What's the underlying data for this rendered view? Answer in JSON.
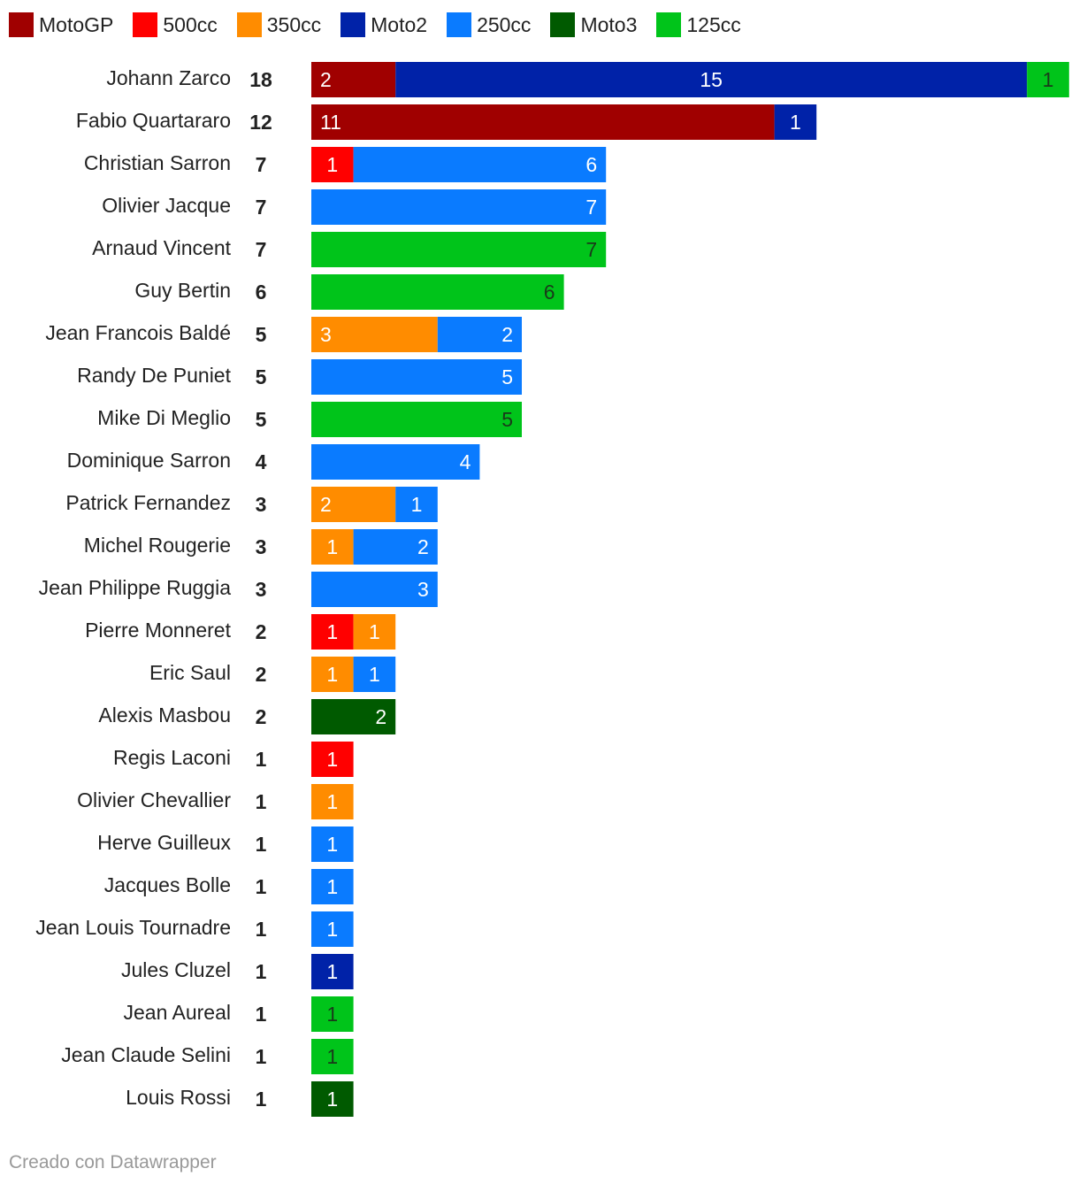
{
  "legend": [
    {
      "name": "MotoGP",
      "color": "#a00000"
    },
    {
      "name": "500cc",
      "color": "#ff0000"
    },
    {
      "name": "350cc",
      "color": "#ff8c00"
    },
    {
      "name": "Moto2",
      "color": "#0022a8"
    },
    {
      "name": "250cc",
      "color": "#0a7bff"
    },
    {
      "name": "Moto3",
      "color": "#005a00"
    },
    {
      "name": "125cc",
      "color": "#00c41a"
    }
  ],
  "footer": "Creado con Datawrapper",
  "chart_data": {
    "type": "bar",
    "orientation": "horizontal",
    "stacked": true,
    "legend_position": "top-left",
    "categories": [
      "Johann Zarco",
      "Fabio Quartararo",
      "Christian Sarron",
      "Olivier Jacque",
      "Arnaud Vincent",
      "Guy Bertin",
      "Jean Francois Baldé",
      "Randy De Puniet",
      "Mike Di Meglio",
      "Dominique Sarron",
      "Patrick Fernandez",
      "Michel Rougerie",
      "Jean Philippe Ruggia",
      "Pierre Monneret",
      "Eric Saul",
      "Alexis Masbou",
      "Regis Laconi",
      "Olivier Chevallier",
      "Herve Guilleux",
      "Jacques Bolle",
      "Jean Louis Tournadre",
      "Jules Cluzel",
      "Jean Aureal",
      "Jean Claude Selini",
      "Louis Rossi"
    ],
    "totals": [
      18,
      12,
      7,
      7,
      7,
      6,
      5,
      5,
      5,
      4,
      3,
      3,
      3,
      2,
      2,
      2,
      1,
      1,
      1,
      1,
      1,
      1,
      1,
      1,
      1
    ],
    "series": [
      {
        "name": "MotoGP",
        "values": [
          2,
          11,
          0,
          0,
          0,
          0,
          0,
          0,
          0,
          0,
          0,
          0,
          0,
          0,
          0,
          0,
          0,
          0,
          0,
          0,
          0,
          0,
          0,
          0,
          0
        ]
      },
      {
        "name": "500cc",
        "values": [
          0,
          0,
          1,
          0,
          0,
          0,
          0,
          0,
          0,
          0,
          0,
          0,
          0,
          1,
          0,
          0,
          1,
          0,
          0,
          0,
          0,
          0,
          0,
          0,
          0
        ]
      },
      {
        "name": "350cc",
        "values": [
          0,
          0,
          0,
          0,
          0,
          0,
          3,
          0,
          0,
          0,
          2,
          1,
          0,
          1,
          1,
          0,
          0,
          1,
          0,
          0,
          0,
          0,
          0,
          0,
          0
        ]
      },
      {
        "name": "Moto2",
        "values": [
          15,
          1,
          0,
          0,
          0,
          0,
          0,
          0,
          0,
          0,
          0,
          0,
          0,
          0,
          0,
          0,
          0,
          0,
          0,
          0,
          0,
          1,
          0,
          0,
          0
        ]
      },
      {
        "name": "250cc",
        "values": [
          0,
          0,
          6,
          7,
          0,
          0,
          2,
          5,
          0,
          4,
          1,
          2,
          3,
          0,
          1,
          0,
          0,
          0,
          1,
          1,
          1,
          0,
          0,
          0,
          0
        ]
      },
      {
        "name": "Moto3",
        "values": [
          0,
          0,
          0,
          0,
          0,
          0,
          0,
          0,
          0,
          0,
          0,
          0,
          0,
          0,
          0,
          2,
          0,
          0,
          0,
          0,
          0,
          0,
          0,
          0,
          1
        ]
      },
      {
        "name": "125cc",
        "values": [
          1,
          0,
          0,
          0,
          7,
          6,
          0,
          0,
          5,
          0,
          0,
          0,
          0,
          0,
          0,
          0,
          0,
          0,
          0,
          0,
          0,
          0,
          1,
          1,
          0
        ]
      }
    ],
    "xlim": [
      0,
      18
    ]
  }
}
